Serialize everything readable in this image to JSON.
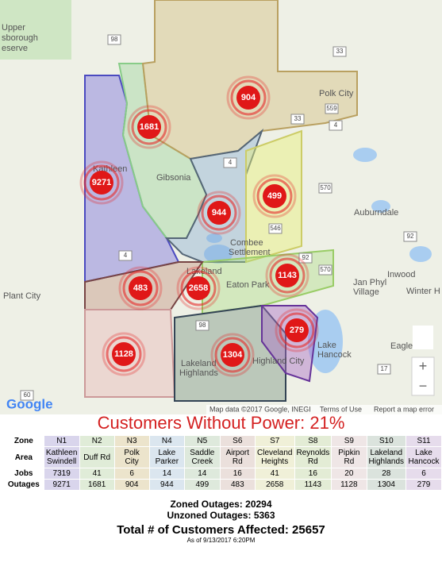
{
  "map": {
    "places": [
      "Upper",
      "sborough",
      "eserve",
      "Kathleen",
      "Gibsonia",
      "Combee",
      "Settlement",
      "Lakeland",
      "Polk City",
      "Auburndale",
      "Inwood",
      "Jan Phyl",
      "Village",
      "Winter H",
      "Plant City",
      "Eaton Park",
      "Lakeland",
      "Highlands",
      "Highland City",
      "Eagle",
      "Lake",
      "Hancock"
    ],
    "roads": [
      "98",
      "33",
      "559",
      "4",
      "33",
      "4",
      "570",
      "546",
      "92",
      "92",
      "570",
      "98",
      "4",
      "60",
      "17"
    ],
    "markers": [
      "904",
      "1681",
      "9271",
      "499",
      "944",
      "1143",
      "483",
      "2658",
      "279",
      "1128",
      "1304"
    ],
    "attribution": "Map data ©2017 Google, INEGI",
    "terms": "Terms of Use",
    "report": "Report a map error",
    "logo": "Google",
    "zoom_in": "+",
    "zoom_out": "−"
  },
  "title": "Customers Without Power: 21%",
  "table": {
    "rows": [
      [
        "Zone",
        "N1",
        "N2",
        "N3",
        "N4",
        "N5",
        "S6",
        "S7",
        "S8",
        "S9",
        "S10",
        "S11"
      ],
      [
        "Area",
        "Kathleen Swindell",
        "Duff Rd",
        "Polk City",
        "Lake Parker",
        "Saddle Creek",
        "Airport Rd",
        "Cleveland Heights",
        "Reynolds Rd",
        "Pipkin Rd",
        "Lakeland Highlands",
        "Lake Hancock"
      ],
      [
        "Jobs",
        "7319",
        "41",
        "6",
        "14",
        "14",
        "16",
        "41",
        "16",
        "20",
        "28",
        "6"
      ],
      [
        "Outages",
        "9271",
        "1681",
        "904",
        "944",
        "499",
        "483",
        "2658",
        "1143",
        "1128",
        "1304",
        "279"
      ]
    ]
  },
  "summary": {
    "zoned": "Zoned Outages: 20294",
    "unzoned": "Unzoned Outages: 5363",
    "total": "Total # of Customers Affected: 25657",
    "asof": "As of 9/13/2017 6:20PM"
  }
}
